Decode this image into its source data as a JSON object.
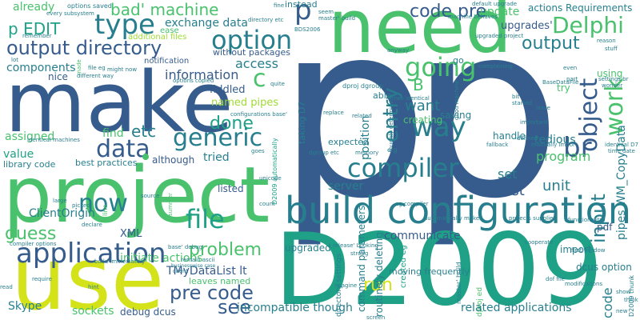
{
  "word_cloud": {
    "palette": {
      "dark_purple": "#46327e",
      "blue": "#365c8d",
      "teal_blue": "#277f8e",
      "teal": "#1fa187",
      "green": "#4ac16d",
      "lime": "#a0da39",
      "yellow": "#d4e21a",
      "deep_purple": "#440154"
    },
    "words": {
      "p_big": "p",
      "p_big2": "p",
      "need": "need",
      "make": "make",
      "project": "project",
      "use": "use",
      "d2009": "D2009",
      "build_configuration": "build configuration",
      "option": "option",
      "output_directory": "output directory",
      "p_edit": "p EDIT",
      "type": "type",
      "bad_machine": "bad' machine",
      "code_pre": "code pre",
      "delphi": "Delphi",
      "going": "going",
      "way": "way",
      "work": "work",
      "entry": "entry",
      "object": "object",
      "generic": "generic",
      "data": "data",
      "compiler": "compiler",
      "application": "application",
      "file": "file",
      "now": "now",
      "guess": "guess",
      "problem": "problem",
      "pre_code": "pre code",
      "see": "see",
      "run": "run",
      "br": "br",
      "input": "input",
      "output": "output",
      "b": "B",
      "c": "c",
      "done": "done",
      "etc": "etc",
      "want": "want",
      "information": "information",
      "access": "access",
      "exchange_data": "exchange data",
      "update": "update",
      "upgrades": "upgrades'",
      "actions_requirements": "actions Requirements",
      "already": "already",
      "components": "components",
      "nice": "nice",
      "fiddled": "fiddled",
      "named_pipes": "named pipes",
      "assigned": "assigned",
      "value": "value",
      "library_code": "library code",
      "best_practices": "best practices",
      "find": "find",
      "tried": "tried",
      "although": "although",
      "client_origin": "ClientOrigin",
      "xml": "XML",
      "initiate_actions": "initiate actions",
      "tmydatalist": "TMyDataList lt",
      "leaves_named": "leaves named",
      "skype": "Skype",
      "sockets": "sockets",
      "debug_dcus": "debug dcus",
      "incompatible_though": "incompatible though",
      "related_applications": "related applications",
      "communicate": "communicate",
      "server": "server",
      "listed": "listed",
      "upgraded": "upgraded",
      "fast": "fast",
      "unit": "unit",
      "set": "set",
      "program": "program",
      "tedious": "tedious",
      "handle": "handle",
      "using": "using",
      "pipes_wm_copydata": "pipes WM_CopyData",
      "pdf": "pdf",
      "import": "import",
      "dcus_option": "dcus option",
      "code_small": "code",
      "position": "position",
      "creating": "creating",
      "saving": "saving",
      "able": "able",
      "expected": "expected",
      "instead": "instead",
      "without_packages": "without packages",
      "additional_files": "additional files",
      "notification": "notification",
      "ease": "ease",
      "dproj_ed": "dproj ed",
      "try": "try",
      "go": "go",
      "command_parameters": "command parameters",
      "moving_frequently": "moving frequently",
      "routinely_deleting": "routinely deleting",
      "created_eg": "created eg",
      "directory_settings": "directory settings",
      "taking_d7": "taking D7",
      "d2009_automatically": "D2009 automatically",
      "moved": "moved",
      "options_saved": "options saved",
      "every_subsystem": "every subsystem",
      "remember": "remember",
      "options_copied": "options copied",
      "might_now": "might now",
      "different_way": "different way",
      "quite": "quite",
      "configurations_base": "configurations base'",
      "identical_machines": "identical machines",
      "two_identical": "two identical",
      "dproj_dgroup": "dproj dgroup",
      "master_build": "master' build",
      "default_upgrade": "default upgrade",
      "upgraded_project": "upgraded project",
      "machine_behaves": "machine behaves",
      "complaining": "complaining",
      "basedatafile": "BaseDataFile",
      "reason": "reason",
      "stuff": "stuff",
      "settings_br": "settings br",
      "wonder": "wonder",
      "d7_identical": "identical D7",
      "time_date": "time date",
      "manually_import": "manually import",
      "projects_supplied": "projects supplied",
      "eg_compiler": "eg compiler",
      "automatically_makes": "automatically makes",
      "dgroup_etc": "dgroup etc",
      "d2009_thunk": "D2009 thunk",
      "dof_file": "dof file",
      "first_window": "first window",
      "release_looking": "release' Looking",
      "base_debug": "base' debug'",
      "build_immediately": "build immediately",
      "compiler_options": "compiler options",
      "remain_ascii": "remain ascii",
      "businesswise_case": "businesswise case",
      "imagine": "imagine",
      "strong": "strong",
      "cooperate": "cooperate",
      "functionality": "functionality",
      "modifications": "modifications",
      "bds2006": "BDS2006",
      "fine": "fine",
      "seem": "seem",
      "directory_etc": "directory etc",
      "lot": "lot",
      "made": "made",
      "file_eg": "file eg",
      "replace": "replace",
      "eg": "e g",
      "started": "started",
      "issue": "issue",
      "part": "part",
      "even": "even",
      "bit": "bit",
      "important": "important",
      "fallback": "fallback",
      "defined": "defined",
      "show": "show",
      "new": "new",
      "summer": "summer",
      "source": "source",
      "large": "large",
      "picked": "picked",
      "declare": "declare",
      "line": "line",
      "client": "client",
      "read": "read",
      "require": "require",
      "hint": "hint",
      "screen": "screen",
      "count": "count",
      "unicode": "unicode",
      "anyway": "anyway",
      "related": "related",
      "memory": "memory",
      "goes": "goes",
      "good_machine": "good machine",
      "roughly_determined": "roughly determined",
      "think": "think"
    }
  }
}
